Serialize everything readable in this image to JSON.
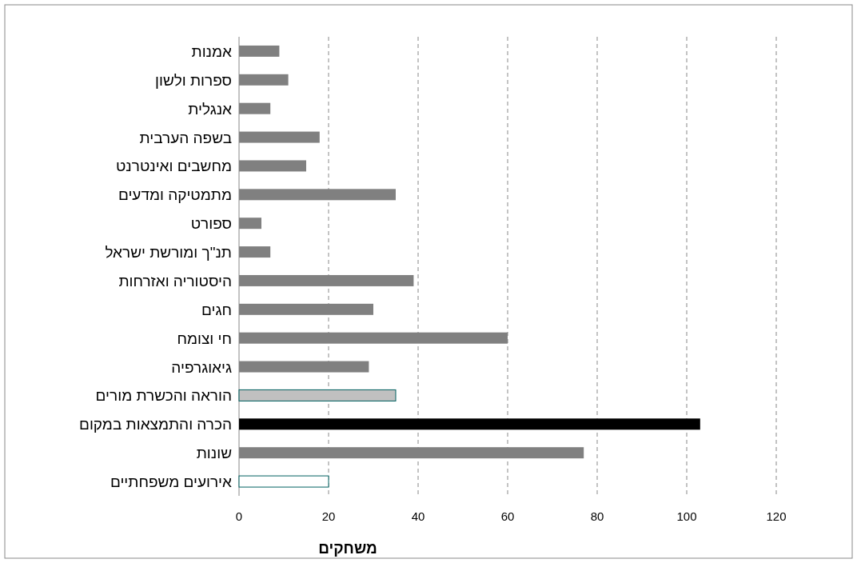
{
  "chart_data": {
    "type": "bar",
    "orientation": "horizontal",
    "xlabel": "משחקים",
    "categories": [
      "אמנות",
      "ספרות ולשון",
      "אנגלית",
      "בשפה הערבית",
      "מחשבים ואינטרנט",
      "מתמטיקה ומדעים",
      "ספורט",
      "תנ\"ך ומורשת ישראל",
      "היסטוריה ואזרחות",
      "חגים",
      "חי וצומח",
      "גיאוגרפיה",
      "הוראה והכשרת מורים",
      "הכרה והתמצאות במקום",
      "שונות",
      "אירועים משפחתיים"
    ],
    "values": [
      9,
      11,
      7,
      18,
      15,
      35,
      5,
      7,
      39,
      30,
      60,
      29,
      35,
      103,
      77,
      20
    ],
    "colors": [
      "#808080",
      "#808080",
      "#808080",
      "#808080",
      "#808080",
      "#808080",
      "#808080",
      "#808080",
      "#808080",
      "#808080",
      "#808080",
      "#808080",
      "#c0c0c0",
      "#000000",
      "#808080",
      "#ffffff"
    ],
    "xlim": [
      0,
      120
    ],
    "xticks": [
      0,
      20,
      40,
      60,
      80,
      100,
      120
    ],
    "grid": "x"
  }
}
